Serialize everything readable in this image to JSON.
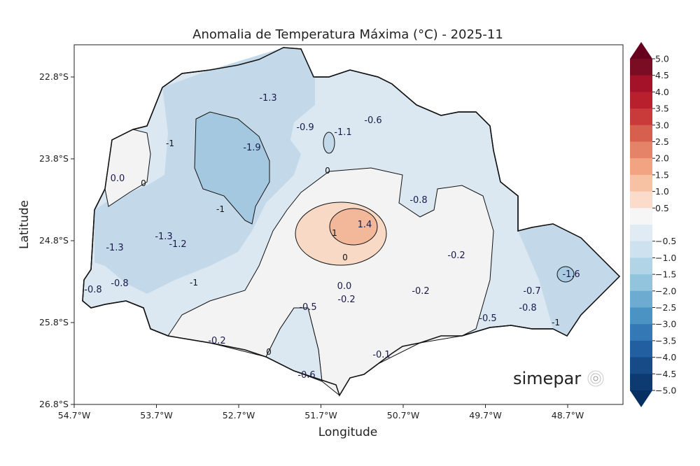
{
  "title": "Anomalia de Temperatura Máxima (°C) - 2025-11",
  "xlabel": "Longitude",
  "ylabel": "Latitude",
  "x_ticks": [
    "54.7°W",
    "53.7°W",
    "52.7°W",
    "51.7°W",
    "50.7°W",
    "49.7°W",
    "48.7°W"
  ],
  "y_ticks": [
    "22.8°S",
    "23.8°S",
    "24.8°S",
    "25.8°S",
    "26.8°S"
  ],
  "colorbar": {
    "ticks": [
      "5.0",
      "4.5",
      "4.0",
      "3.5",
      "3.0",
      "2.5",
      "2.0",
      "1.5",
      "1.0",
      "0.5",
      "−0.5",
      "−1.0",
      "−1.5",
      "−2.0",
      "−2.5",
      "−3.0",
      "−3.5",
      "−4.0",
      "−4.5",
      "−5.0"
    ],
    "colors": [
      "#7a0d24",
      "#a31229",
      "#b8202e",
      "#c93a3b",
      "#d6604d",
      "#e58368",
      "#f2a482",
      "#f7c1a4",
      "#fbdccb",
      "#f6f6f6",
      "#e1ebf3",
      "#cde1ee",
      "#b2d4e7",
      "#93c4de",
      "#6eabd1",
      "#4a93c3",
      "#3479b6",
      "#215fa0",
      "#164b88",
      "#0d3a70"
    ],
    "top_color": "#67001f",
    "bottom_color": "#053061"
  },
  "contour_labels": [
    "-1.3",
    "-0.6",
    "-0.9",
    "-1.1",
    "-1.9",
    "0.0",
    "-0.8",
    "1.4",
    "-1.3",
    "-1.2",
    "-1.3",
    "-0.2",
    "-0.8",
    "-0.8",
    "0.0",
    "-0.2",
    "-0.2",
    "-0.5",
    "-0.7",
    "-0.8",
    "-1.6",
    "-0.5",
    "-0.2",
    "-0.1",
    "-0.6"
  ],
  "contour_line_labels": [
    "-1",
    "-1",
    "-1",
    "0",
    "0",
    "0",
    "0",
    "1",
    "-1"
  ],
  "logo": "simepar"
}
